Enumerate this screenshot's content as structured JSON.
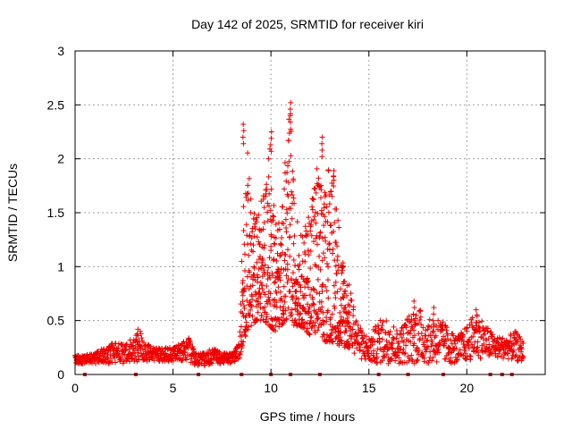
{
  "chart_data": {
    "type": "scatter",
    "title": "Day 142 of 2025, SRMTID for receiver kiri",
    "xlabel": "GPS time / hours",
    "ylabel": "SRMTID / TECUs",
    "xlim": [
      0,
      24
    ],
    "ylim": [
      0,
      3
    ],
    "xticks": [
      0,
      5,
      10,
      15,
      20
    ],
    "yticks": [
      0,
      0.5,
      1,
      1.5,
      2,
      2.5,
      3
    ],
    "xtick_labels": [
      "0",
      "5",
      "10",
      "15",
      "20"
    ],
    "ytick_labels": [
      "0",
      "0.5",
      "1",
      "1.5",
      "2",
      "2.5",
      "3"
    ],
    "grid": true,
    "marker": "+",
    "color": "#ee0000",
    "series": [
      {
        "name": "SRMTID",
        "envelope_x": [
          0.0,
          0.5,
          1.0,
          1.5,
          2.0,
          2.5,
          3.0,
          3.3,
          3.6,
          4.0,
          4.5,
          5.0,
          5.5,
          5.8,
          6.2,
          6.6,
          7.0,
          7.5,
          8.0,
          8.4,
          8.6,
          8.8,
          9.0,
          9.3,
          9.6,
          9.9,
          10.2,
          10.5,
          10.8,
          11.0,
          11.2,
          11.5,
          11.8,
          12.1,
          12.4,
          12.7,
          13.0,
          13.3,
          13.6,
          13.9,
          14.2,
          14.5,
          15.0,
          15.5,
          16.0,
          16.5,
          17.0,
          17.5,
          18.0,
          18.5,
          19.0,
          19.5,
          20.0,
          20.5,
          21.0,
          21.5,
          22.0,
          22.5,
          22.9
        ],
        "envelope_low": [
          0.1,
          0.1,
          0.1,
          0.1,
          0.1,
          0.1,
          0.12,
          0.12,
          0.12,
          0.12,
          0.12,
          0.12,
          0.12,
          0.12,
          0.08,
          0.08,
          0.1,
          0.1,
          0.1,
          0.15,
          0.3,
          0.4,
          0.45,
          0.5,
          0.5,
          0.45,
          0.4,
          0.45,
          0.5,
          0.5,
          0.45,
          0.45,
          0.4,
          0.35,
          0.35,
          0.3,
          0.3,
          0.3,
          0.25,
          0.25,
          0.2,
          0.15,
          0.1,
          0.1,
          0.1,
          0.1,
          0.1,
          0.1,
          0.1,
          0.1,
          0.1,
          0.1,
          0.12,
          0.15,
          0.15,
          0.15,
          0.15,
          0.12,
          0.12
        ],
        "envelope_high": [
          0.18,
          0.18,
          0.2,
          0.25,
          0.3,
          0.28,
          0.35,
          0.42,
          0.3,
          0.25,
          0.25,
          0.25,
          0.3,
          0.35,
          0.2,
          0.2,
          0.25,
          0.2,
          0.2,
          0.3,
          1.8,
          2.1,
          1.6,
          1.5,
          1.7,
          2.2,
          1.6,
          1.4,
          2.2,
          2.5,
          1.6,
          1.3,
          1.4,
          1.8,
          2.0,
          1.6,
          2.2,
          1.8,
          1.2,
          0.9,
          0.7,
          0.45,
          0.35,
          0.5,
          0.55,
          0.4,
          0.55,
          0.65,
          0.5,
          0.55,
          0.45,
          0.35,
          0.45,
          0.6,
          0.45,
          0.35,
          0.35,
          0.4,
          0.3
        ],
        "notable_peaks": [
          {
            "x": 3.2,
            "y": 0.42
          },
          {
            "x": 8.6,
            "y": 2.32
          },
          {
            "x": 10.0,
            "y": 2.25
          },
          {
            "x": 11.0,
            "y": 2.52
          },
          {
            "x": 12.6,
            "y": 2.2
          },
          {
            "x": 17.3,
            "y": 0.68
          },
          {
            "x": 18.3,
            "y": 0.62
          },
          {
            "x": 20.5,
            "y": 0.6
          }
        ],
        "baseline_markers_x": [
          0.5,
          3.1,
          6.3,
          8.5,
          10.0,
          11.0,
          12.5,
          15.5,
          17.0,
          18.8,
          21.2,
          21.8,
          22.3
        ]
      }
    ]
  }
}
